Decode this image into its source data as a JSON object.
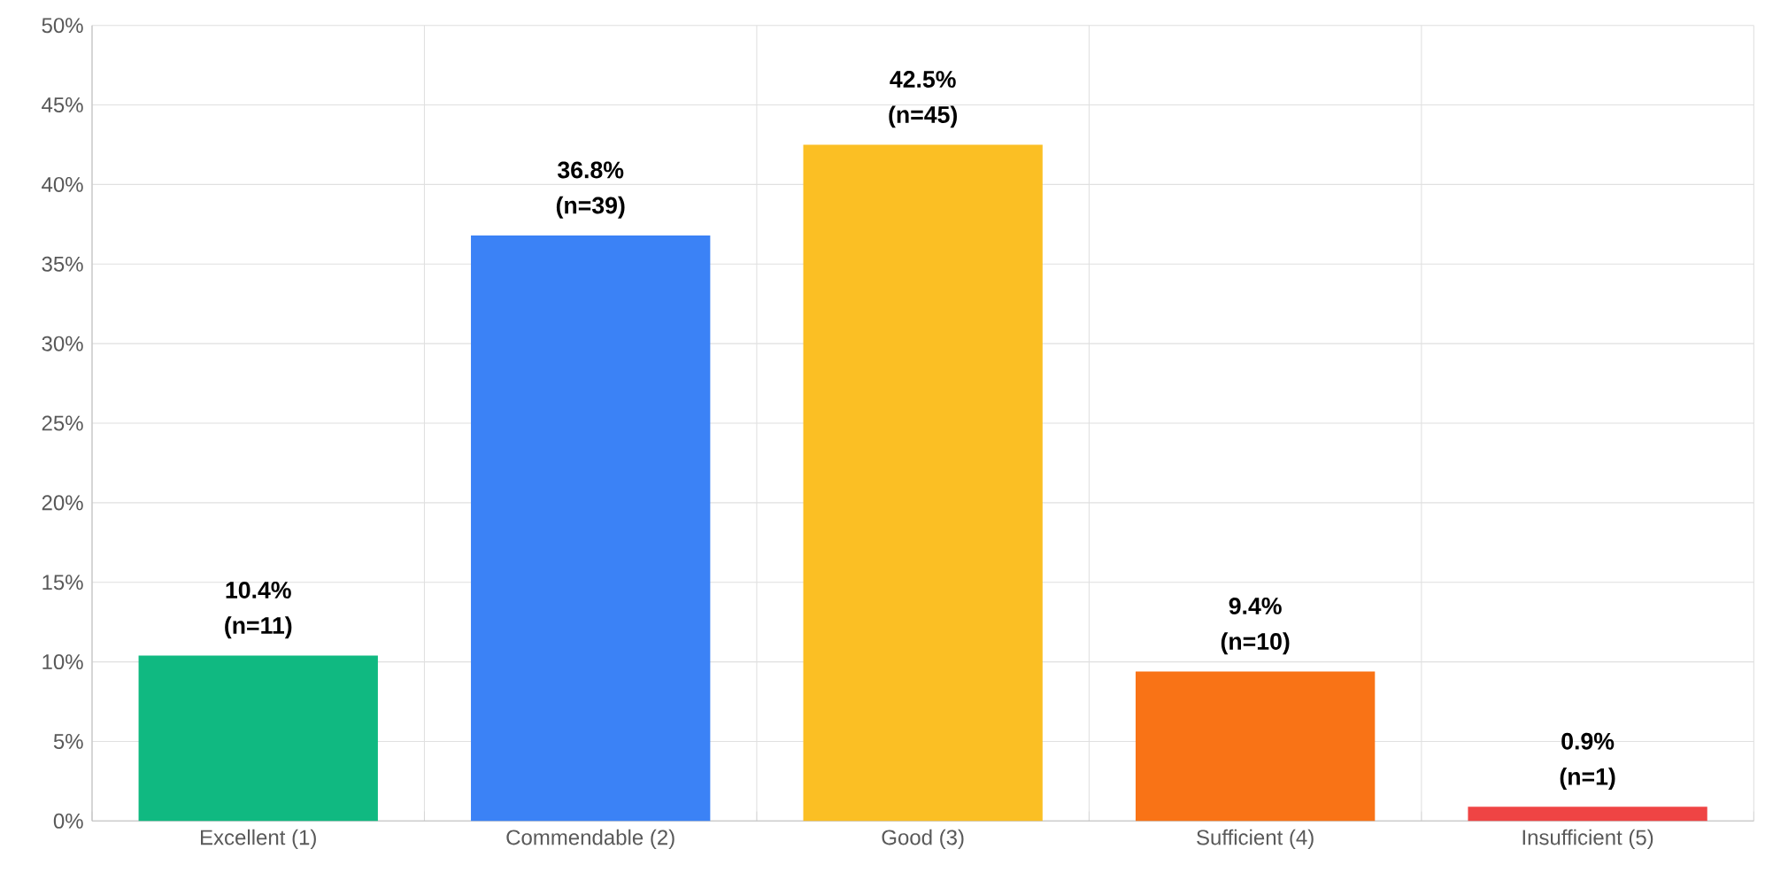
{
  "chart_data": {
    "type": "bar",
    "categories": [
      "Excellent (1)",
      "Commendable (2)",
      "Good (3)",
      "Sufficient (4)",
      "Insufficient (5)"
    ],
    "values": [
      10.4,
      36.8,
      42.5,
      9.4,
      0.9
    ],
    "colors": [
      "#10b981",
      "#3b82f6",
      "#fbbf24",
      "#f97316",
      "#ef4444"
    ],
    "value_labels": [
      "10.4% (n=11)",
      "36.8% (n=39)",
      "42.5% (n=45)",
      "9.4% (n=10)",
      "0.9% (n=1)"
    ],
    "ylim": [
      0,
      50
    ],
    "yticks": [
      {
        "value": 0,
        "label": "0%"
      },
      {
        "value": 5,
        "label": "5%"
      },
      {
        "value": 10,
        "label": "10%"
      },
      {
        "value": 15,
        "label": "15%"
      },
      {
        "value": 20,
        "label": "20%"
      },
      {
        "value": 25,
        "label": "25%"
      },
      {
        "value": 30,
        "label": "30%"
      },
      {
        "value": 35,
        "label": "35%"
      },
      {
        "value": 40,
        "label": "40%"
      },
      {
        "value": 45,
        "label": "45%"
      },
      {
        "value": 50,
        "label": "50%"
      }
    ],
    "grid": true
  }
}
